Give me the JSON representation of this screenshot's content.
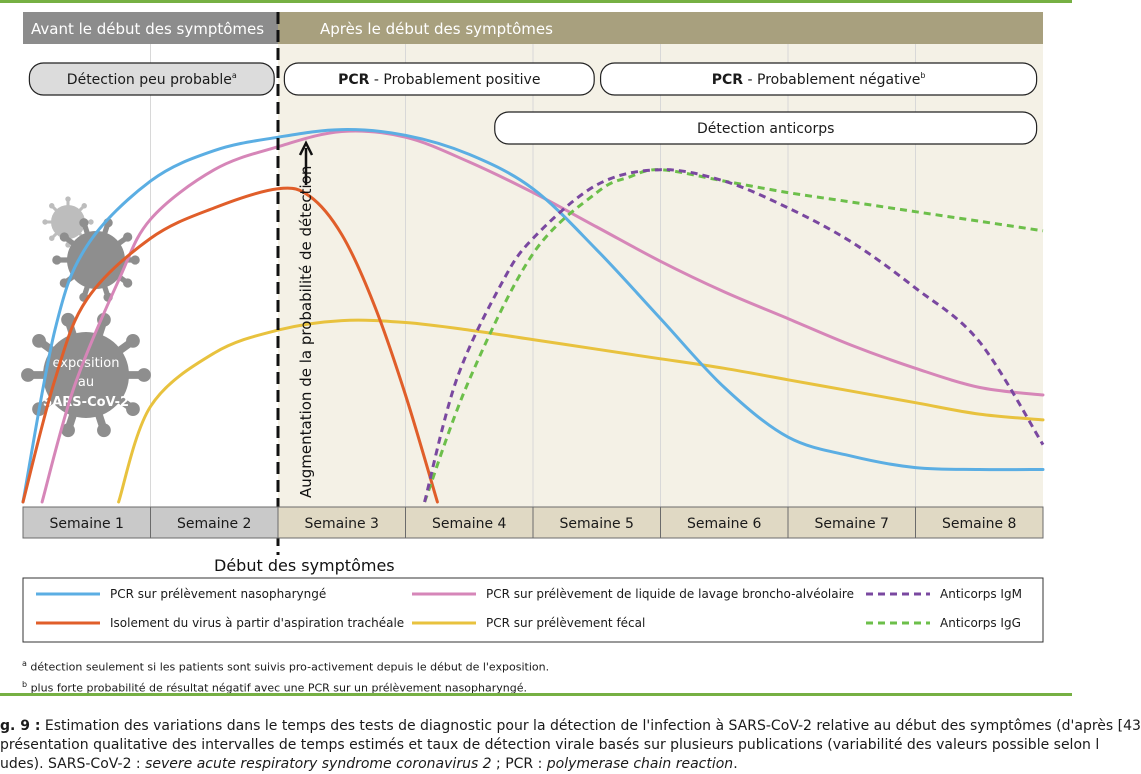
{
  "chart_data": {
    "type": "line",
    "title": "",
    "xlabel": "",
    "ylabel": "Augmentation de la probabilité de détection",
    "x_unit": "semaines",
    "xlim": [
      0,
      8
    ],
    "ylim": [
      0,
      100
    ],
    "categories": [
      "Semaine 1",
      "Semaine 2",
      "Semaine 3",
      "Semaine 4",
      "Semaine 5",
      "Semaine 6",
      "Semaine 7",
      "Semaine 8"
    ],
    "symptom_onset_week": 2,
    "phases": {
      "before": "Avant le début des symptômes",
      "after": "Après le début des symptômes"
    },
    "onset_label": "Début des symptômes",
    "bands": [
      {
        "key": "b1",
        "bold": "",
        "text": "Détection peu probable",
        "sup": "a",
        "from": 0.05,
        "to": 1.97,
        "row": 1
      },
      {
        "key": "b2",
        "bold": "PCR",
        "text": " - Probablement positive",
        "sup": "",
        "from": 2.05,
        "to": 4.48,
        "row": 1
      },
      {
        "key": "b3",
        "bold": "PCR",
        "text": " - Probablement négative",
        "sup": "b",
        "from": 4.53,
        "to": 7.95,
        "row": 1
      },
      {
        "key": "b4",
        "bold": "",
        "text": "Détection anticorps",
        "sup": "",
        "from": 3.7,
        "to": 7.95,
        "row": 2
      }
    ],
    "series": [
      {
        "key": "s1",
        "name": "PCR sur prélèvement nasopharyngé",
        "color": "#5baee3",
        "dashed": false,
        "points": [
          [
            0,
            0
          ],
          [
            0.25,
            45
          ],
          [
            0.5,
            67
          ],
          [
            1,
            84
          ],
          [
            1.5,
            92
          ],
          [
            2,
            95.5
          ],
          [
            2.5,
            97.5
          ],
          [
            3,
            96
          ],
          [
            3.5,
            91
          ],
          [
            4,
            82
          ],
          [
            4.5,
            66
          ],
          [
            5,
            48
          ],
          [
            5.5,
            30
          ],
          [
            6,
            17
          ],
          [
            6.5,
            12
          ],
          [
            7,
            9
          ],
          [
            7.5,
            8.5
          ],
          [
            8,
            8.5
          ]
        ]
      },
      {
        "key": "s2",
        "name": "PCR sur prélèvement de liquide de lavage broncho-alvéolaire",
        "color": "#d686b8",
        "dashed": false,
        "points": [
          [
            0.15,
            0
          ],
          [
            0.4,
            30
          ],
          [
            0.75,
            58
          ],
          [
            1,
            74
          ],
          [
            1.5,
            87
          ],
          [
            2,
            93
          ],
          [
            2.5,
            97
          ],
          [
            3,
            95.5
          ],
          [
            3.5,
            89
          ],
          [
            4,
            81
          ],
          [
            4.5,
            72
          ],
          [
            5,
            63
          ],
          [
            5.5,
            55
          ],
          [
            6,
            48
          ],
          [
            6.5,
            41
          ],
          [
            7,
            35
          ],
          [
            7.5,
            30
          ],
          [
            8,
            28
          ]
        ]
      },
      {
        "key": "s3",
        "name": "Isolement du virus à partir d'aspiration trachéale",
        "color": "#e05e2a",
        "dashed": false,
        "points": [
          [
            0,
            0
          ],
          [
            0.25,
            32
          ],
          [
            0.5,
            53
          ],
          [
            1,
            69
          ],
          [
            1.5,
            77
          ],
          [
            2,
            82
          ],
          [
            2.25,
            80
          ],
          [
            2.5,
            70
          ],
          [
            2.75,
            52
          ],
          [
            3,
            28
          ],
          [
            3.25,
            0
          ]
        ]
      },
      {
        "key": "s4",
        "name": "PCR sur prélèvement fécal",
        "color": "#e8c23e",
        "dashed": false,
        "points": [
          [
            0.75,
            0
          ],
          [
            1,
            25
          ],
          [
            1.5,
            39
          ],
          [
            2,
            45
          ],
          [
            2.5,
            47.5
          ],
          [
            3,
            47
          ],
          [
            3.5,
            45
          ],
          [
            4,
            42.5
          ],
          [
            4.5,
            40
          ],
          [
            5,
            37.5
          ],
          [
            5.5,
            35
          ],
          [
            6,
            32
          ],
          [
            6.5,
            29
          ],
          [
            7,
            26
          ],
          [
            7.5,
            23
          ],
          [
            8,
            21.5
          ]
        ]
      },
      {
        "key": "s5",
        "name": "Anticorps IgM",
        "color": "#7a48a0",
        "dashed": true,
        "points": [
          [
            3.15,
            0
          ],
          [
            3.4,
            32
          ],
          [
            3.75,
            57
          ],
          [
            4,
            69
          ],
          [
            4.5,
            83
          ],
          [
            5,
            87
          ],
          [
            5.5,
            84
          ],
          [
            6,
            77
          ],
          [
            6.5,
            68
          ],
          [
            7,
            56
          ],
          [
            7.5,
            42
          ],
          [
            8,
            15
          ]
        ]
      },
      {
        "key": "s6",
        "name": "Anticorps IgG",
        "color": "#6cbf4a",
        "dashed": true,
        "points": [
          [
            3.15,
            0
          ],
          [
            3.5,
            32
          ],
          [
            4,
            65
          ],
          [
            4.5,
            81
          ],
          [
            4.75,
            85
          ],
          [
            5,
            87
          ],
          [
            5.5,
            84
          ],
          [
            6,
            81
          ],
          [
            6.5,
            78.5
          ],
          [
            7,
            76
          ],
          [
            7.5,
            73.5
          ],
          [
            8,
            71
          ]
        ]
      }
    ],
    "legend": {
      "rows": [
        [
          "s1",
          "s2",
          "s5"
        ],
        [
          "s3",
          "s4",
          "s6"
        ]
      ]
    },
    "virus_label": [
      "exposition",
      "au",
      "SARS-CoV-2"
    ]
  },
  "notes": {
    "a": "détection seulement si les patients sont suivis pro-activement depuis le début de l'exposition.",
    "b": "plus forte probabilité de résultat négatif avec une PCR sur un prélèvement nasopharyngé."
  },
  "caption": {
    "lead": "g. 9 :",
    "text1": " Estimation des variations dans le temps des tests de diagnostic pour la détection de l'infection à SARS-CoV-2 relative au début des symptômes (d'après [43",
    "line2": "présentation qualitative des intervalles de temps estimés et taux de détection virale basés sur plusieurs publications (variabilité des valeurs possible selon l",
    "line3a": "udes). SARS-CoV-2 : ",
    "line3b": "severe acute respiratory syndrome coronavirus 2",
    "line3c": " ; PCR : ",
    "line3d": "polymerase chain reaction",
    "line3e": "."
  },
  "colors": {
    "before_header": "#8c8c8c",
    "after_header": "#a8a07e",
    "before_bg": "#ffffff",
    "after_bg": "#f4f1e6",
    "week_before": "#c9c9c9",
    "week_after": "#e0d9c4",
    "virus": "#8e8e8e",
    "virus_light": "#bdbdbd",
    "accent_green": "#76b043"
  }
}
